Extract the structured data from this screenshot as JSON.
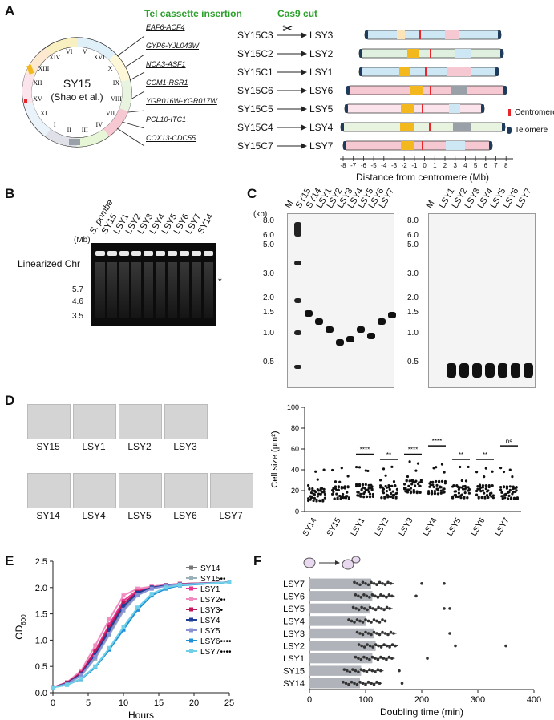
{
  "panels": {
    "A": "A",
    "B": "B",
    "C": "C",
    "D": "D",
    "E": "E",
    "F": "F"
  },
  "panelA": {
    "header_tel": "Tel cassette insertion",
    "header_cas9": "Cas9 cut",
    "genome_name": "SY15",
    "genome_ref": "(Shao et al.)",
    "chromosomes": [
      "V",
      "XVI",
      "X",
      "IX",
      "VIII",
      "VII",
      "IV",
      "III",
      "II",
      "I",
      "XI",
      "XV",
      "XII",
      "XIII",
      "XIV",
      "VI"
    ],
    "rows": [
      {
        "gene": "EAF6-ACF4",
        "strain": "SY15C3",
        "lsy": "LSY3"
      },
      {
        "gene": "GYP6-YJL043W",
        "strain": "SY15C2",
        "lsy": "LSY2"
      },
      {
        "gene": "NCA3-ASF1",
        "strain": "SY15C1",
        "lsy": "LSY1"
      },
      {
        "gene": "CCM1-RSR1",
        "strain": "SY15C6",
        "lsy": "LSY6"
      },
      {
        "gene": "YGR016W-YGR017W",
        "strain": "SY15C5",
        "lsy": "LSY5"
      },
      {
        "gene": "PCL10-ITC1",
        "strain": "SY15C4",
        "lsy": "LSY4"
      },
      {
        "gene": "COX13-CDC55",
        "strain": "SY15C7",
        "lsy": "LSY7"
      }
    ],
    "legend": {
      "centromere": "Centromere",
      "telomere": "Telomere"
    },
    "axis_ticks": [
      "-8",
      "-7",
      "-6",
      "-5",
      "-4",
      "-3",
      "-2",
      "-1",
      "0",
      "1",
      "2",
      "3",
      "4",
      "5",
      "6",
      "7",
      "8"
    ],
    "axis_label": "Distance from centromere (Mb)",
    "colors": {
      "centromere": "#e8262a",
      "telomere": "#1f3b5c",
      "green": "#2aa02a"
    }
  },
  "panelB": {
    "lanes": [
      "S. pombe",
      "SY15",
      "LSY1",
      "LSY2",
      "LSY3",
      "LSY4",
      "LSY5",
      "LSY6",
      "LSY7",
      "SY14"
    ],
    "unit": "(Mb)",
    "markers": [
      "5.7",
      "4.6",
      "3.5"
    ],
    "band_label": "Linearized Chr",
    "star": "*"
  },
  "panelC": {
    "left_lanes": [
      "M",
      "SY15",
      "SY14",
      "LSY1",
      "LSY2",
      "LSY3",
      "LSY4",
      "LSY5",
      "LSY6",
      "LSY7"
    ],
    "right_lanes": [
      "M",
      "LSY1",
      "LSY2",
      "LSY3",
      "LSY4",
      "LSY5",
      "LSY6",
      "LSY7"
    ],
    "unit": "(kb)",
    "markers": [
      "8.0",
      "6.0",
      "5.0",
      "3.0",
      "2.0",
      "1.5",
      "1.0",
      "0.5"
    ]
  },
  "panelD": {
    "images_top": [
      "SY15",
      "LSY1",
      "LSY2",
      "LSY3"
    ],
    "images_bottom": [
      "SY14",
      "LSY4",
      "LSY5",
      "LSY6",
      "LSY7"
    ],
    "chart_data": {
      "type": "scatter",
      "categories": [
        "SY14",
        "SY15",
        "LSY1",
        "LSY2",
        "LSY3",
        "LSY4",
        "LSY5",
        "LSY6",
        "LSY7"
      ],
      "ylabel": "Cell size (μm²)",
      "ylim": [
        0,
        100
      ],
      "yticks": [
        "0",
        "20",
        "40",
        "60",
        "80",
        "100"
      ],
      "significance": [
        "",
        "",
        "****",
        "**",
        "****",
        "****",
        "**",
        "**",
        "ns"
      ],
      "medians": [
        14,
        16,
        18,
        17,
        22,
        21,
        17,
        17,
        16
      ]
    }
  },
  "panelE": {
    "chart_data": {
      "type": "line",
      "xlabel": "Hours",
      "ylabel": "OD600",
      "ylabel_main": "OD",
      "ylabel_sub": "600",
      "xlim": [
        0,
        25
      ],
      "ylim": [
        0,
        2.5
      ],
      "xticks": [
        "0",
        "5",
        "10",
        "15",
        "20",
        "25"
      ],
      "yticks": [
        "0.0",
        "0.5",
        "1.0",
        "1.5",
        "2.0",
        "2.5"
      ],
      "x": [
        0,
        2,
        4,
        6,
        8,
        10,
        12,
        14,
        16,
        18,
        25
      ],
      "series": [
        {
          "name": "SY14",
          "color": "#777777",
          "values": [
            0.1,
            0.18,
            0.35,
            0.7,
            1.15,
            1.6,
            1.88,
            2.0,
            2.05,
            2.07,
            2.1
          ]
        },
        {
          "name": "SY15",
          "mark": "••",
          "color": "#9bb0b8",
          "values": [
            0.1,
            0.17,
            0.32,
            0.65,
            1.1,
            1.55,
            1.85,
            1.98,
            2.04,
            2.06,
            2.1
          ]
        },
        {
          "name": "LSY1",
          "color": "#e8368f",
          "values": [
            0.1,
            0.2,
            0.4,
            0.8,
            1.3,
            1.75,
            1.95,
            2.02,
            2.05,
            2.07,
            2.1
          ]
        },
        {
          "name": "LSY2",
          "mark": "••",
          "color": "#f08cc0",
          "values": [
            0.1,
            0.2,
            0.42,
            0.9,
            1.4,
            1.85,
            1.98,
            2.02,
            2.05,
            2.07,
            2.1
          ]
        },
        {
          "name": "LSY3",
          "mark": "•",
          "color": "#c2185b",
          "values": [
            0.1,
            0.19,
            0.38,
            0.78,
            1.25,
            1.7,
            1.92,
            2.0,
            2.04,
            2.07,
            2.1
          ]
        },
        {
          "name": "LSY4",
          "color": "#1f3d99",
          "values": [
            0.1,
            0.18,
            0.35,
            0.72,
            1.2,
            1.65,
            1.9,
            2.0,
            2.04,
            2.06,
            2.1
          ]
        },
        {
          "name": "LSY5",
          "color": "#8891d6",
          "values": [
            0.1,
            0.17,
            0.33,
            0.68,
            1.12,
            1.58,
            1.86,
            1.98,
            2.03,
            2.06,
            2.1
          ]
        },
        {
          "name": "LSY6",
          "mark": "••••",
          "color": "#1e90d6",
          "values": [
            0.1,
            0.15,
            0.26,
            0.48,
            0.82,
            1.2,
            1.58,
            1.85,
            1.98,
            2.04,
            2.1
          ]
        },
        {
          "name": "LSY7",
          "mark": "••••",
          "color": "#6fd0e8",
          "values": [
            0.1,
            0.15,
            0.27,
            0.5,
            0.85,
            1.25,
            1.62,
            1.88,
            2.0,
            2.05,
            2.1
          ]
        }
      ]
    }
  },
  "panelF": {
    "chart_data": {
      "type": "bar",
      "orientation": "horizontal",
      "categories": [
        "LSY7",
        "LSY6",
        "LSY5",
        "LSY4",
        "LSY3",
        "LSY2",
        "LSY1",
        "SY15",
        "SY14"
      ],
      "values": [
        110,
        112,
        108,
        100,
        115,
        118,
        112,
        92,
        90
      ],
      "xlabel": "Doubling time (min)",
      "xlim": [
        0,
        400
      ],
      "xticks": [
        "0",
        "100",
        "200",
        "300",
        "400"
      ],
      "outliers": [
        [
          200,
          240
        ],
        [
          190
        ],
        [
          240,
          250
        ],
        [],
        [
          250
        ],
        [
          260,
          350
        ],
        [
          210
        ],
        [
          160
        ],
        [
          165
        ]
      ]
    }
  }
}
